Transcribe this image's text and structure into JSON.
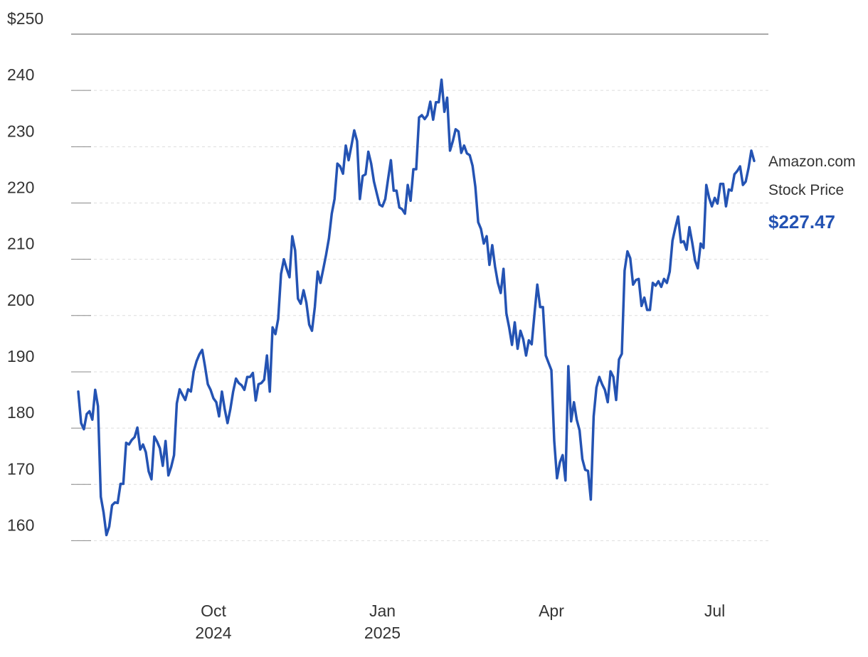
{
  "chart_data": {
    "type": "line",
    "categories": [
      null,
      null,
      null,
      null,
      null,
      null,
      null,
      null,
      null,
      null,
      null,
      null,
      null,
      null,
      null,
      null,
      null,
      null,
      null,
      null,
      null,
      null,
      null,
      null,
      null,
      null,
      null,
      null,
      null,
      null,
      null,
      null,
      null,
      null,
      null,
      null,
      null,
      null,
      null,
      null,
      null,
      null,
      null,
      null,
      null,
      null,
      null,
      null,
      "Oct 2024",
      null,
      null,
      null,
      null,
      null,
      null,
      null,
      null,
      null,
      null,
      null,
      null,
      null,
      null,
      null,
      null,
      null,
      null,
      null,
      null,
      null,
      null,
      null,
      null,
      null,
      null,
      null,
      null,
      null,
      null,
      null,
      null,
      null,
      null,
      null,
      null,
      null,
      null,
      null,
      null,
      null,
      null,
      null,
      null,
      null,
      null,
      null,
      null,
      null,
      null,
      null,
      null,
      null,
      null,
      null,
      null,
      null,
      null,
      null,
      "Jan 2025",
      null,
      null,
      null,
      null,
      null,
      null,
      null,
      null,
      null,
      null,
      null,
      null,
      null,
      null,
      null,
      null,
      null,
      null,
      null,
      null,
      null,
      null,
      null,
      null,
      null,
      null,
      null,
      null,
      null,
      null,
      null,
      null,
      null,
      null,
      null,
      null,
      null,
      null,
      null,
      null,
      null,
      null,
      null,
      null,
      null,
      null,
      null,
      null,
      null,
      null,
      null,
      null,
      null,
      null,
      null,
      null,
      null,
      null,
      null,
      "Apr",
      null,
      null,
      null,
      null,
      null,
      null,
      null,
      null,
      null,
      null,
      null,
      null,
      null,
      null,
      null,
      null,
      null,
      null,
      null,
      null,
      null,
      null,
      null,
      null,
      null,
      null,
      null,
      null,
      null,
      null,
      null,
      null,
      null,
      null,
      null,
      null,
      null,
      null,
      null,
      null,
      null,
      null,
      null,
      null,
      null,
      null,
      null,
      null,
      null,
      null,
      null,
      null,
      null,
      null,
      null,
      null,
      null,
      "Jul",
      null,
      null,
      null,
      null,
      null,
      null,
      null,
      null,
      null,
      null,
      null,
      null,
      null,
      null
    ],
    "series": [
      {
        "name": "Amazon.com Stock Price",
        "color": "#2453b3",
        "values": [
          186.5,
          180.9,
          179.8,
          182.5,
          183,
          181.5,
          186.8,
          183.9,
          167.8,
          165,
          161,
          162.5,
          166.3,
          166.8,
          166.7,
          170.1,
          170.1,
          177.4,
          177.1,
          177.9,
          178.4,
          180.1,
          176.2,
          177.1,
          175.7,
          172.3,
          170.9,
          178.5,
          177.6,
          176.4,
          173.3,
          177.7,
          171.6,
          173.1,
          175.2,
          184.4,
          186.9,
          185.9,
          185,
          186.9,
          186.5,
          190.1,
          191.9,
          193.1,
          193.9,
          191,
          187.8,
          186.8,
          185.3,
          184.6,
          182.1,
          186.5,
          183.4,
          180.9,
          183.4,
          186.5,
          188.8,
          188,
          187.6,
          186.8,
          189.1,
          189.1,
          189.8,
          184.9,
          187.8,
          188,
          188.6,
          192.9,
          186.5,
          197.9,
          196.7,
          199.4,
          207.4,
          210,
          208.3,
          206.8,
          214.1,
          211.6,
          203,
          202.1,
          204.5,
          202.3,
          198.4,
          197.3,
          201.5,
          207.8,
          205.8,
          208.3,
          210.8,
          213.7,
          218.1,
          220.7,
          227,
          226.5,
          225.2,
          230.2,
          227.6,
          230.2,
          232.9,
          231,
          220.7,
          224.8,
          225.1,
          229.1,
          227,
          223.8,
          221.7,
          219.7,
          219.4,
          220.7,
          224.2,
          227.6,
          222.2,
          222.2,
          219.2,
          218.9,
          218.1,
          223.2,
          220.4,
          226,
          226,
          235.2,
          235.6,
          234.9,
          235.6,
          238,
          234.8,
          237.9,
          237.9,
          241.9,
          236.2,
          238.7,
          229.3,
          231,
          233.1,
          232.7,
          228.9,
          230.2,
          228.8,
          228.5,
          226.6,
          222.9,
          216.6,
          215.4,
          212.8,
          214.1,
          209,
          212.5,
          208.7,
          205.8,
          204,
          208.3,
          200.4,
          197.9,
          194.8,
          198.8,
          194.1,
          197.3,
          195.8,
          192.9,
          195.6,
          194.9,
          200.4,
          205.5,
          201.5,
          201.5,
          192.9,
          191.6,
          190.3,
          177.7,
          171.1,
          173.9,
          175.2,
          170.7,
          191,
          181.2,
          184.6,
          181.5,
          179.6,
          174.5,
          172.6,
          172.4,
          167.3,
          182.1,
          187.2,
          189.1,
          187.8,
          186.8,
          184.6,
          190.1,
          189.1,
          185,
          192.2,
          193.2,
          208,
          211.4,
          210.2,
          205.5,
          206.3,
          206.5,
          201.7,
          203.2,
          201,
          201,
          205.8,
          205.3,
          206.1,
          205.1,
          206.5,
          205.8,
          207.8,
          213.3,
          215.6,
          217.6,
          213,
          213.2,
          211.7,
          215.7,
          213,
          209.8,
          208.4,
          212.8,
          212,
          223.2,
          220.9,
          219.4,
          220.9,
          219.9,
          223.4,
          223.4,
          219.4,
          222.4,
          222.2,
          225.1,
          225.7,
          226.5,
          223.2,
          223.8,
          226.2,
          229.3,
          227.47
        ],
        "value_labels": [
          null,
          null,
          null,
          null,
          null,
          null,
          null,
          null,
          null,
          null,
          null,
          null,
          null,
          null,
          null,
          null,
          null,
          null,
          null,
          null,
          null,
          null,
          null,
          null,
          null,
          null,
          null,
          null,
          null,
          null,
          null,
          null,
          null,
          null,
          null,
          null,
          null,
          null,
          null,
          null,
          null,
          null,
          null,
          null,
          null,
          null,
          null,
          null,
          null,
          null,
          null,
          null,
          null,
          null,
          null,
          null,
          null,
          null,
          null,
          null,
          null,
          null,
          null,
          null,
          null,
          null,
          null,
          null,
          null,
          null,
          null,
          null,
          null,
          null,
          null,
          null,
          null,
          null,
          null,
          null,
          null,
          null,
          null,
          null,
          null,
          null,
          null,
          null,
          null,
          null,
          null,
          null,
          null,
          null,
          null,
          null,
          null,
          null,
          null,
          null,
          null,
          null,
          null,
          null,
          null,
          null,
          null,
          null,
          null,
          null,
          null,
          null,
          null,
          null,
          null,
          null,
          null,
          null,
          null,
          null,
          null,
          null,
          null,
          null,
          null,
          null,
          null,
          null,
          null,
          null,
          null,
          null,
          null,
          null,
          null,
          null,
          null,
          null,
          null,
          null,
          null,
          null,
          null,
          null,
          null,
          null,
          null,
          null,
          null,
          null,
          null,
          null,
          null,
          null,
          null,
          null,
          null,
          null,
          null,
          null,
          null,
          null,
          null,
          null,
          null,
          null,
          null,
          null,
          null,
          null,
          null,
          null,
          null,
          null,
          null,
          null,
          null,
          null,
          null,
          null,
          null,
          null,
          null,
          null,
          null,
          null,
          null,
          null,
          null,
          null,
          null,
          null,
          null,
          null,
          null,
          null,
          null,
          null,
          null,
          null,
          null,
          null,
          null,
          null,
          null,
          null,
          null,
          null,
          null,
          null,
          null,
          null,
          null,
          null,
          null,
          null,
          null,
          null,
          null,
          null,
          null,
          null,
          null,
          null,
          null,
          null,
          null,
          null,
          null,
          null,
          null,
          null,
          null,
          null,
          null,
          null,
          null,
          null,
          null,
          null,
          "$227.47"
        ]
      }
    ],
    "ylim": [
      155,
      250
    ],
    "yticks": [
      160,
      170,
      180,
      190,
      200,
      210,
      220,
      230,
      240,
      {
        "value": 250,
        "label": "$250"
      }
    ],
    "grid": true
  }
}
